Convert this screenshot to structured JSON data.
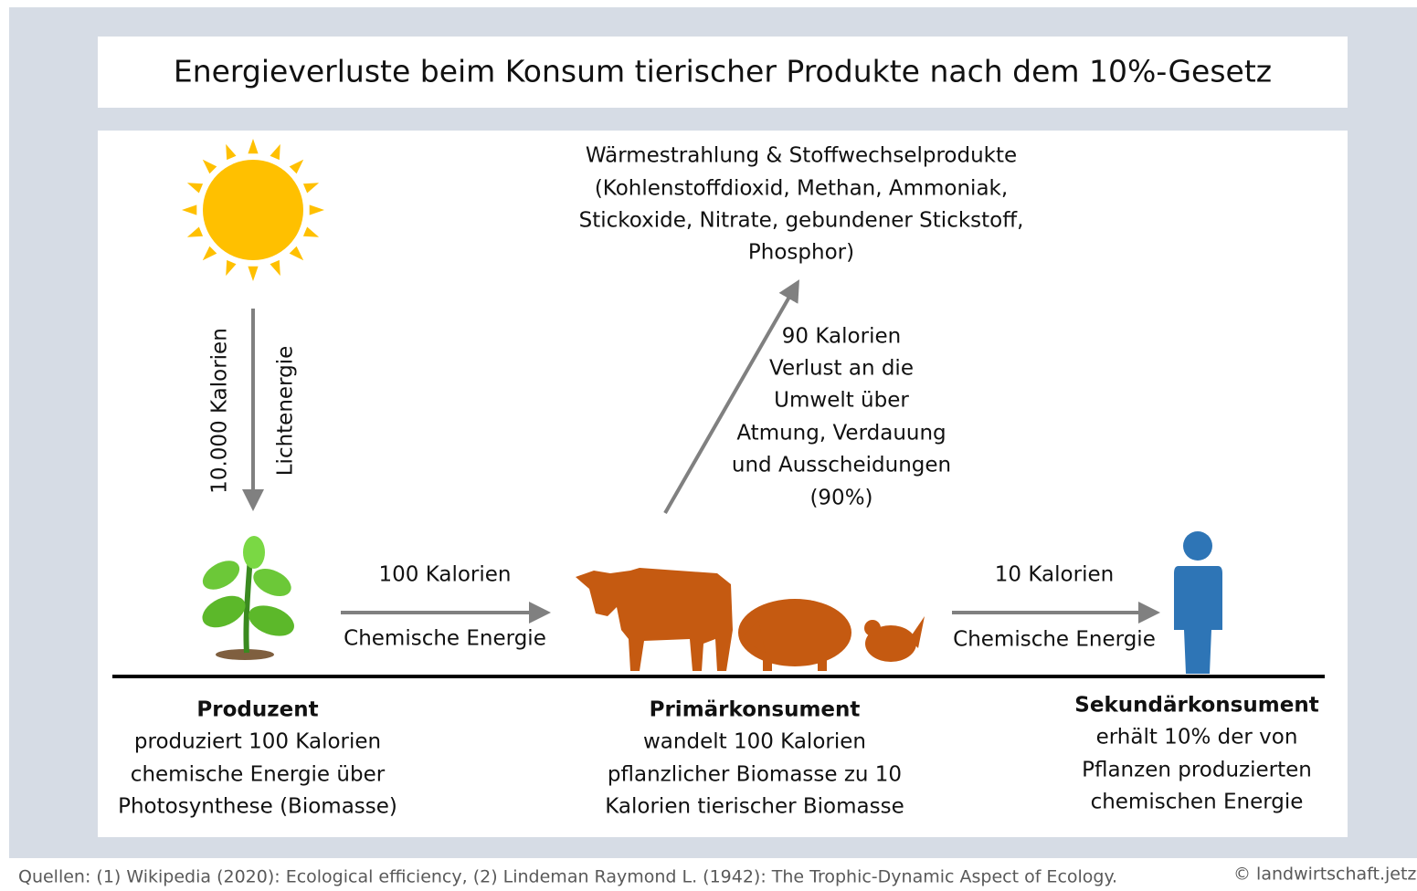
{
  "title": "Energieverluste beim Konsum tierischer Produkte nach dem 10%-Gesetz",
  "emissions": {
    "lines": [
      "Wärmestrahlung & Stoffwechselprodukte",
      "(Kohlenstoffdioxid, Methan, Ammoniak,",
      "Stickoxide, Nitrate, gebundener Stickstoff,",
      "Phosphor)"
    ]
  },
  "loss": {
    "lines": [
      "90 Kalorien",
      "Verlust an die",
      "Umwelt über",
      "Atmung, Verdauung",
      "und Ausscheidungen",
      "(90%)"
    ]
  },
  "light": {
    "amount": "10.000 Kalorien",
    "label": "Lichtenergie"
  },
  "transfers": [
    {
      "amount": "100 Kalorien",
      "label": "Chemische Energie"
    },
    {
      "amount": "10 Kalorien",
      "label": "Chemische Energie"
    }
  ],
  "levels": [
    {
      "title": "Produzent",
      "lines": [
        "produziert 100 Kalorien",
        "chemische Energie über",
        "Photosynthese (Biomasse)"
      ]
    },
    {
      "title": "Primärkonsument",
      "lines": [
        "wandelt 100 Kalorien",
        "pflanzlicher Biomasse zu 10",
        "Kalorien tierischer Biomasse"
      ]
    },
    {
      "title": "Sekundärkonsument",
      "lines": [
        "erhält 10% der von",
        "Pflanzen produzierten",
        "chemischen Energie"
      ]
    }
  ],
  "footer": {
    "sources": "Quellen: (1) Wikipedia (2020): Ecological efficiency, (2) Lindeman Raymond L. (1942): The Trophic-Dynamic Aspect of Ecology.",
    "copyright": "© landwirtschaft.jetzt"
  }
}
